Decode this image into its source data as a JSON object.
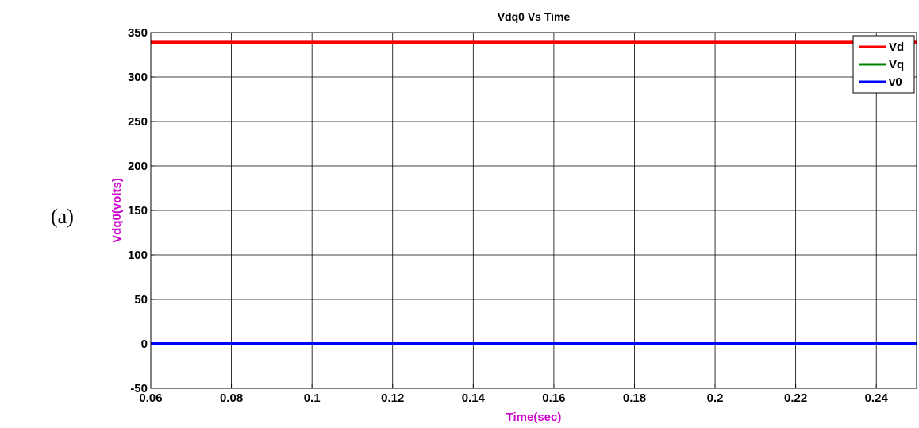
{
  "panel_label": "(a)",
  "chart_data": {
    "type": "line",
    "title": "Vdq0 Vs Time",
    "xlabel": "Time(sec)",
    "ylabel": "Vdq0(volts)",
    "label_color": "#cc00cc",
    "xlim": [
      0.06,
      0.25
    ],
    "ylim": [
      -50,
      350
    ],
    "xticks": [
      0.06,
      0.08,
      0.1,
      0.12,
      0.14,
      0.16,
      0.18,
      0.2,
      0.22,
      0.24
    ],
    "xtick_labels": [
      "0.06",
      "0.08",
      "0.1",
      "0.12",
      "0.14",
      "0.16",
      "0.18",
      "0.2",
      "0.22",
      "0.24"
    ],
    "yticks": [
      -50,
      0,
      50,
      100,
      150,
      200,
      250,
      300,
      350
    ],
    "ytick_labels": [
      "-50",
      "0",
      "50",
      "100",
      "150",
      "200",
      "250",
      "300",
      "350"
    ],
    "grid": true,
    "legend_position": "top-right",
    "series": [
      {
        "name": "Vd",
        "color": "#ff0000",
        "x": [
          0.06,
          0.25
        ],
        "y": [
          339,
          339
        ]
      },
      {
        "name": "Vq",
        "color": "#008000",
        "x": [
          0.06,
          0.25
        ],
        "y": [
          0,
          0
        ]
      },
      {
        "name": "v0",
        "color": "#0000ff",
        "x": [
          0.06,
          0.25
        ],
        "y": [
          0,
          0
        ]
      }
    ]
  }
}
